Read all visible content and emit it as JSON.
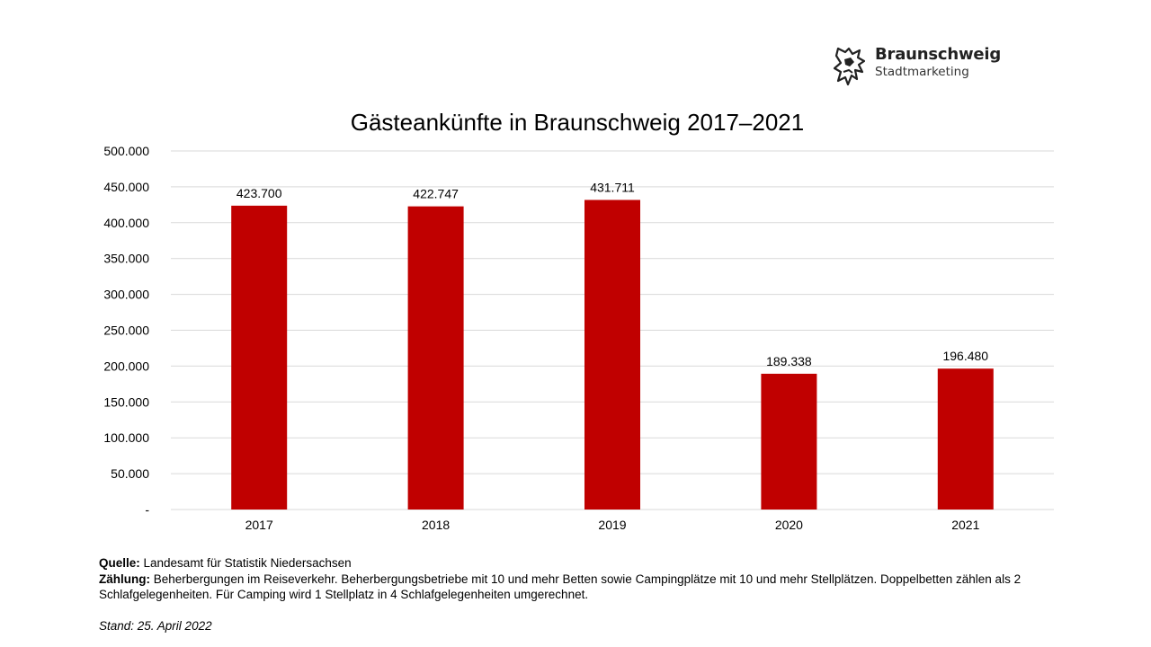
{
  "logo": {
    "title": "Braunschweig",
    "subtitle": "Stadtmarketing",
    "icon": "braunschweig-lion-icon"
  },
  "chart_data": {
    "type": "bar",
    "title": "Gästeankünfte in Braunschweig 2017–2021",
    "xlabel": "",
    "ylabel": "",
    "categories": [
      "2017",
      "2018",
      "2019",
      "2020",
      "2021"
    ],
    "values": [
      423700,
      422747,
      431711,
      189338,
      196480
    ],
    "value_labels": [
      "423.700",
      "422.747",
      "431.711",
      "189.338",
      "196.480"
    ],
    "ylim": [
      0,
      500000
    ],
    "y_ticks": [
      0,
      50000,
      100000,
      150000,
      200000,
      250000,
      300000,
      350000,
      400000,
      450000,
      500000
    ],
    "y_tick_labels": [
      "-",
      "50.000",
      "100.000",
      "150.000",
      "200.000",
      "250.000",
      "300.000",
      "350.000",
      "400.000",
      "450.000",
      "500.000"
    ],
    "grid": true,
    "legend": "none",
    "bar_color": "#c00000",
    "grid_color": "#d9d9d9"
  },
  "notes": {
    "source_label": "Quelle:",
    "source_text": " Landesamt für Statistik Niedersachsen",
    "count_label": "Zählung:",
    "count_text": " Beherbergungen im Reiseverkehr. Beherbergungsbetriebe mit 10 und mehr Betten sowie Campingplätze mit 10 und mehr Stellplätzen. Doppelbetten zählen als 2 Schlafgelegenheiten. Für Camping wird 1 Stellplatz in 4 Schlafgelegenheiten umgerechnet.",
    "stand": "Stand: 25. April 2022"
  }
}
